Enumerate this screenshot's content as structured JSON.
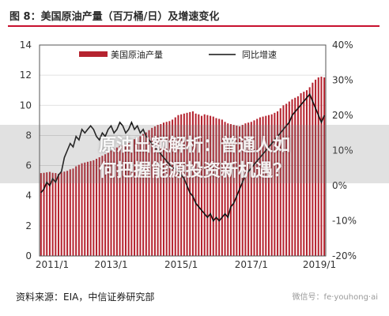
{
  "header": {
    "title": "图 8：美国原油产量（百万桶/日）及增速变化"
  },
  "footer": {
    "source": "资料来源：EIA，中信证券研究部",
    "wechat": "微信号：fe·youhong·ai"
  },
  "overlay": {
    "line1": "原油出额解析：普通人如",
    "line2": "何把握能源投资新机遇？"
  },
  "colors": {
    "bar": "#b5232f",
    "line": "#111111",
    "title_rule": "#c8102e"
  },
  "chart_data": {
    "type": "bar+line",
    "x_tick_labels": [
      "2011/1",
      "2013/1",
      "2015/1",
      "2017/1",
      "2019/1"
    ],
    "x_start": "2011/1",
    "x_end": "2019/2",
    "y_left": {
      "ticks": [
        0,
        2,
        4,
        6,
        8,
        10,
        12,
        14
      ],
      "lim": [
        0,
        14
      ]
    },
    "y_right": {
      "ticks": [
        "-20%",
        "-10%",
        "0%",
        "10%",
        "20%",
        "30%",
        "40%"
      ],
      "lim": [
        -20,
        40
      ]
    },
    "legend": {
      "placement": "top",
      "items": [
        "美国原油产量",
        "同比增速"
      ]
    },
    "series": [
      {
        "name": "美国原油产量",
        "kind": "bar",
        "axis": "left",
        "values": [
          5.5,
          5.52,
          5.55,
          5.58,
          5.52,
          5.5,
          5.45,
          5.55,
          5.6,
          5.65,
          5.75,
          5.8,
          5.95,
          6.05,
          6.15,
          6.2,
          6.25,
          6.3,
          6.35,
          6.45,
          6.55,
          6.65,
          6.75,
          6.85,
          7.0,
          7.1,
          7.2,
          7.3,
          7.35,
          7.4,
          7.5,
          7.6,
          7.75,
          7.85,
          7.95,
          8.1,
          8.2,
          8.35,
          8.5,
          8.6,
          8.7,
          8.75,
          8.85,
          8.9,
          8.95,
          9.05,
          9.2,
          9.35,
          9.4,
          9.45,
          9.5,
          9.55,
          9.6,
          9.45,
          9.4,
          9.3,
          9.4,
          9.35,
          9.3,
          9.25,
          9.15,
          9.1,
          9.05,
          8.9,
          8.8,
          8.75,
          8.7,
          8.65,
          8.6,
          8.7,
          8.8,
          8.85,
          8.9,
          9.0,
          9.1,
          9.2,
          9.25,
          9.3,
          9.35,
          9.4,
          9.5,
          9.6,
          9.8,
          10.0,
          10.1,
          10.25,
          10.4,
          10.5,
          10.6,
          10.8,
          10.9,
          11.0,
          11.2,
          11.5,
          11.7,
          11.85,
          11.9,
          11.85
        ]
      },
      {
        "name": "同比增速",
        "kind": "line",
        "axis": "right",
        "values": [
          -2,
          -1,
          1,
          0,
          2,
          1,
          3,
          4,
          8,
          10,
          12,
          11,
          14,
          13,
          16,
          15,
          16,
          17,
          16,
          14,
          13,
          15,
          14,
          16,
          17,
          15,
          16,
          18,
          17,
          15,
          16,
          18,
          16,
          17,
          15,
          16,
          14,
          13,
          12,
          11,
          10,
          9,
          8,
          7,
          6,
          5,
          5,
          4,
          3,
          2,
          0,
          -2,
          -3,
          -5,
          -6,
          -7,
          -8,
          -9,
          -8,
          -10,
          -9,
          -10,
          -9,
          -8,
          -9,
          -6,
          -5,
          -3,
          -1,
          1,
          3,
          4,
          5,
          6,
          7,
          8,
          9,
          10,
          11,
          12,
          13,
          14,
          15,
          16,
          17,
          18,
          20,
          21,
          22,
          23,
          24,
          25,
          26,
          24,
          22,
          20,
          18,
          20
        ]
      }
    ]
  }
}
